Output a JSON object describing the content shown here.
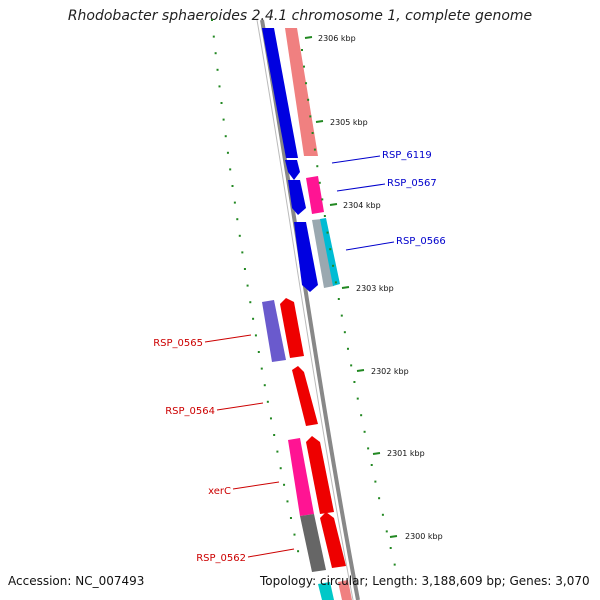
{
  "title": "Rhodobacter sphaeroides 2.4.1 chromosome 1, complete genome",
  "footer": {
    "accession": "Accession: NC_007493",
    "topology": "Topology: circular; Length: 3,188,609 bp; Genes: 3,070"
  },
  "colors": {
    "forward_gene_label": "#0000cc",
    "reverse_gene_label": "#cc0000",
    "backbone": "#888888",
    "tick": "#228822"
  },
  "kbp_ticks": [
    "2306 kbp",
    "2305 kbp",
    "2304 kbp",
    "2303 kbp",
    "2302 kbp",
    "2301 kbp",
    "2300 kbp"
  ],
  "gene_labels": [
    {
      "name": "RSP_6119",
      "strand": "forward"
    },
    {
      "name": "RSP_0567",
      "strand": "forward"
    },
    {
      "name": "RSP_0566",
      "strand": "forward"
    },
    {
      "name": "RSP_0565",
      "strand": "reverse"
    },
    {
      "name": "RSP_0564",
      "strand": "reverse"
    },
    {
      "name": "xerC",
      "strand": "reverse"
    },
    {
      "name": "RSP_0562",
      "strand": "reverse"
    }
  ]
}
